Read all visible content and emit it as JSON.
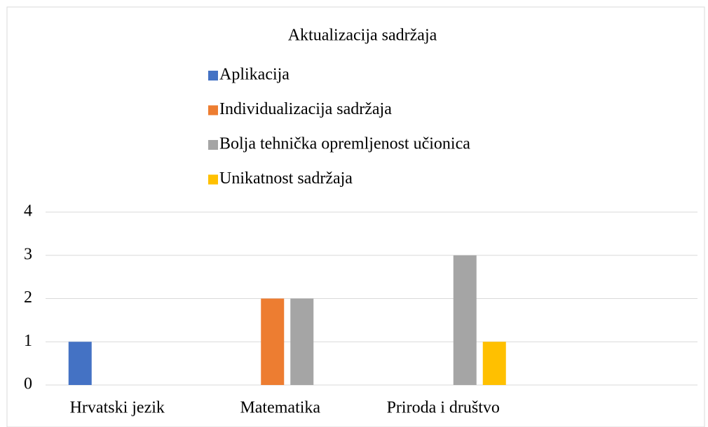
{
  "chart_data": {
    "type": "bar",
    "title": "Aktualizacija sadržaja",
    "categories": [
      "Hrvatski jezik",
      "Matematika",
      "Priroda i društvo",
      null
    ],
    "series": [
      {
        "name": "Aplikacija",
        "color": "#4472c4",
        "values": [
          1,
          0,
          0,
          0
        ]
      },
      {
        "name": "Individualizacija sadržaja",
        "color": "#ed7d31",
        "values": [
          0,
          2,
          0,
          0
        ]
      },
      {
        "name": "Bolja tehnička opremljenost učionica",
        "color": "#a5a5a5",
        "values": [
          0,
          2,
          3,
          0
        ]
      },
      {
        "name": "Unikatnost sadržaja",
        "color": "#ffc000",
        "values": [
          0,
          0,
          1,
          0
        ]
      }
    ],
    "ylim": [
      0,
      4
    ],
    "yticks": [
      0,
      1,
      2,
      3,
      4
    ],
    "grid": true,
    "legend": "top"
  }
}
